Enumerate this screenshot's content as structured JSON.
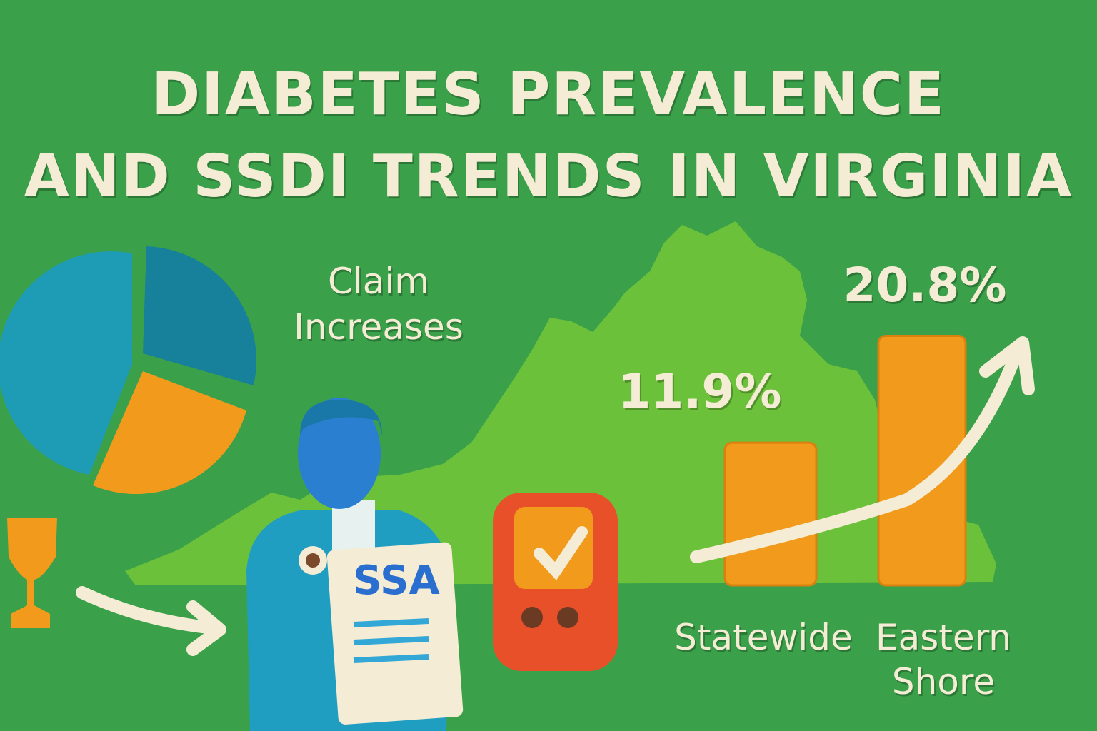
{
  "title_lines": [
    "DIABETES PREVALENCE",
    "AND SSDI TRENDS IN VIRGINIA"
  ],
  "annotation": "Claim Increases",
  "document_label": "SSA",
  "chart_data": {
    "type": "bar",
    "categories": [
      "Statewide",
      "Eastern Shore"
    ],
    "values": [
      11.9,
      20.8
    ],
    "value_labels": [
      "11.9%",
      "20.8%"
    ],
    "color": "#f29a1c"
  }
}
